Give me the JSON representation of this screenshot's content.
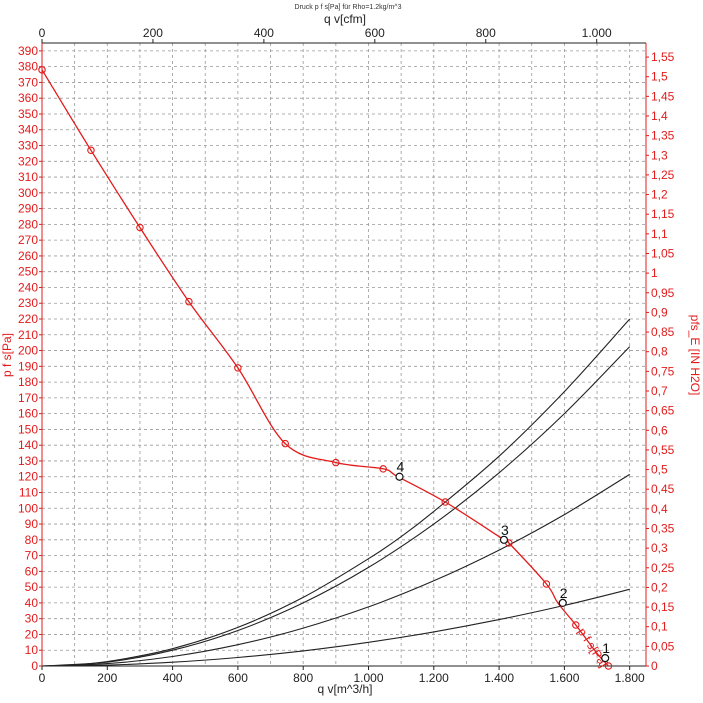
{
  "chart_data": {
    "type": "line",
    "title": "Druck p f s[Pa] für Rho=1.2kg/m^3",
    "xlabel": "q v[m^3/h]",
    "xlabel_top": "q v[cfm]",
    "ylabel_left": "p  f  s[Pa]",
    "ylabel_right": "pfs_E [IN H2O]",
    "xlim": [
      0,
      1850
    ],
    "ylim": [
      0,
      395
    ],
    "x_ticks": [
      0,
      200,
      400,
      600,
      800,
      1000,
      1200,
      1400,
      1600,
      1800
    ],
    "x_tick_labels": [
      "0",
      "200",
      "400",
      "600",
      "800",
      "1.000",
      "1.200",
      "1.400",
      "1.600",
      "1.800"
    ],
    "x_top_ticks": [
      0,
      200,
      400,
      600,
      800,
      1000
    ],
    "x_top_tick_labels": [
      "0",
      "200",
      "400",
      "600",
      "800",
      "1.000"
    ],
    "cfm_factor": 1.699,
    "y_ticks": [
      0,
      10,
      20,
      30,
      40,
      50,
      60,
      70,
      80,
      90,
      100,
      110,
      120,
      130,
      140,
      150,
      160,
      170,
      180,
      190,
      200,
      210,
      220,
      230,
      240,
      250,
      260,
      270,
      280,
      290,
      300,
      310,
      320,
      330,
      340,
      350,
      360,
      370,
      380,
      390
    ],
    "y_right_ticks": [
      0,
      0.05,
      0.1,
      0.15,
      0.2,
      0.25,
      0.3,
      0.35,
      0.4,
      0.45,
      0.5,
      0.55,
      0.6,
      0.65,
      0.7,
      0.75,
      0.8,
      0.85,
      0.9,
      0.95,
      1,
      1.05,
      1.1,
      1.15,
      1.2,
      1.25,
      1.3,
      1.35,
      1.4,
      1.45,
      1.5,
      1.55
    ],
    "y_right_tick_labels": [
      "0",
      "0,05",
      "0,1",
      "0,15",
      "0,2",
      "0,25",
      "0,3",
      "0,35",
      "0,4",
      "0,45",
      "0,5",
      "0,55",
      "0,6",
      "0,65",
      "0,7",
      "0,75",
      "0,8",
      "0,85",
      "0,9",
      "0,95",
      "1",
      "1,05",
      "1,1",
      "1,15",
      "1,2",
      "1,25",
      "1,3",
      "1,35",
      "1,4",
      "1,45",
      "1,5",
      "1,55"
    ],
    "pa_per_inh2o": 249.09,
    "grid": true,
    "fan_curve": {
      "name": "p  f  s[Pa]",
      "color": "#e31b1b",
      "x": [
        0,
        150,
        300,
        450,
        600,
        745,
        900,
        1045,
        1090,
        1235,
        1415,
        1430,
        1545,
        1580,
        1635,
        1700,
        1735
      ],
      "y": [
        378,
        327,
        278,
        231,
        189,
        141,
        129,
        125,
        120,
        104,
        80,
        78,
        52,
        40,
        26,
        8,
        0
      ]
    },
    "fan_curve_markers_x": [
      0,
      150,
      300,
      450,
      600,
      745,
      900,
      1045,
      1235,
      1430,
      1545,
      1635,
      1735
    ],
    "fan_curve_markers_y": [
      378,
      327,
      278,
      231,
      189,
      141,
      129,
      125,
      104,
      78,
      52,
      26,
      0
    ],
    "system_curves": [
      {
        "x": [
          0,
          200,
          400,
          600,
          800,
          1000,
          1200,
          1400,
          1600,
          1800
        ],
        "y": [
          0,
          2.5,
          10,
          22.5,
          40,
          62.5,
          90,
          122.5,
          160,
          202.5
        ],
        "color": "#222222"
      },
      {
        "x": [
          0,
          200,
          400,
          600,
          800,
          1000,
          1200,
          1400,
          1600,
          1800
        ],
        "y": [
          0,
          1.5,
          6,
          13.5,
          24,
          37.5,
          54,
          73.5,
          96,
          121.5
        ],
        "color": "#222222"
      },
      {
        "x": [
          0,
          200,
          400,
          600,
          800,
          1000,
          1200,
          1400,
          1600,
          1800
        ],
        "y": [
          0,
          0.6,
          2.4,
          5.4,
          9.6,
          15,
          21.6,
          29.4,
          38.4,
          48.6
        ],
        "color": "#222222"
      },
      {
        "x": [
          60,
          200,
          400,
          600,
          800,
          1000,
          1100,
          1200,
          1400,
          1600,
          1800
        ],
        "y": [
          0,
          2.8,
          11,
          24.5,
          43.5,
          68,
          82,
          98,
          133,
          174,
          220
        ],
        "color": "#222222"
      }
    ],
    "operating_points": [
      {
        "label": "1",
        "x": 1725,
        "y": 5
      },
      {
        "label": "2",
        "x": 1595,
        "y": 40
      },
      {
        "label": "3",
        "x": 1415,
        "y": 80
      },
      {
        "label": "4",
        "x": 1095,
        "y": 120
      }
    ]
  }
}
